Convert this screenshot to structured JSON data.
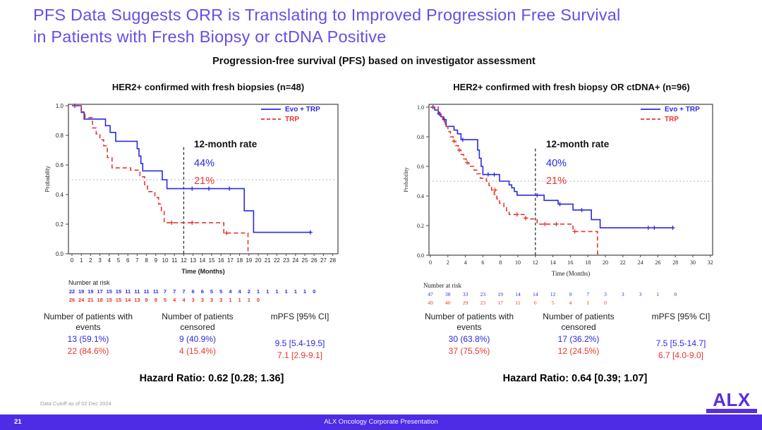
{
  "slide": {
    "title_line1": "PFS Data Suggests ORR is Translating to Improved Progression Free Survival",
    "title_line2": "in Patients with Fresh Biopsy or ctDNA Positive",
    "subtitle": "Progression-free survival (PFS) based on investigator assessment",
    "footer": {
      "data_cutoff": "Data Cutoff as of 02 Dec 2024",
      "page_number": "21",
      "bar_text": "ALX Oncology Corporate Presentation",
      "logo_text": "ALX"
    },
    "colors": {
      "title_purple": "#6b4ce6",
      "footer_bar_purple": "#4e2be4",
      "logo_purple": "#5a2de0",
      "evo_blue": "#2a2ae0",
      "trp_red": "#e8362e"
    }
  },
  "chart_data": [
    {
      "type": "line",
      "subtype": "kaplan_meier_step",
      "title": "HER2+ confirmed with fresh biopsies (n=48)",
      "xlabel": "Time (Months)",
      "ylabel": "Probability",
      "xlim": [
        0,
        28
      ],
      "ylim": [
        0.0,
        1.0
      ],
      "xticks": [
        0,
        1,
        2,
        3,
        4,
        5,
        6,
        7,
        8,
        9,
        10,
        11,
        12,
        13,
        14,
        15,
        16,
        17,
        18,
        19,
        20,
        21,
        22,
        23,
        24,
        25,
        26,
        27,
        28
      ],
      "yticks": [
        "1.0",
        "0.8",
        "0.6",
        "0.4",
        "0.2",
        "0.0"
      ],
      "reference_lines": {
        "vertical_dashed_x": 12,
        "horizontal_dotted_y": 0.5
      },
      "legend": [
        {
          "label": "Evo + TRP",
          "style": "solid"
        },
        {
          "label": "TRP",
          "style": "dashed"
        }
      ],
      "annotation": {
        "title": "12-month rate",
        "values": [
          "44%",
          "21%"
        ]
      },
      "series": [
        {
          "name": "Evo + TRP",
          "color": "#2a2ae0",
          "style": "solid",
          "steps": [
            [
              0,
              1.0
            ],
            [
              1.0,
              0.955
            ],
            [
              1.3,
              0.91
            ],
            [
              3.6,
              0.865
            ],
            [
              4.1,
              0.82
            ],
            [
              4.7,
              0.76
            ],
            [
              7.0,
              0.71
            ],
            [
              7.2,
              0.66
            ],
            [
              7.4,
              0.61
            ],
            [
              7.6,
              0.56
            ],
            [
              9.7,
              0.5
            ],
            [
              10.2,
              0.44
            ],
            [
              18.5,
              0.29
            ],
            [
              19.5,
              0.145
            ]
          ],
          "end": 25.7,
          "censors": [
            [
              0.3,
              1.0
            ],
            [
              12.9,
              0.44
            ],
            [
              14.7,
              0.44
            ],
            [
              16.9,
              0.44
            ],
            [
              25.6,
              0.145
            ]
          ]
        },
        {
          "name": "TRP",
          "color": "#e8362e",
          "style": "dashed",
          "steps": [
            [
              0,
              1.0
            ],
            [
              1.0,
              0.96
            ],
            [
              1.4,
              0.92
            ],
            [
              2.2,
              0.85
            ],
            [
              2.6,
              0.81
            ],
            [
              3.0,
              0.77
            ],
            [
              3.4,
              0.73
            ],
            [
              3.8,
              0.65
            ],
            [
              4.3,
              0.58
            ],
            [
              6.3,
              0.565
            ],
            [
              7.3,
              0.52
            ],
            [
              7.8,
              0.46
            ],
            [
              8.1,
              0.42
            ],
            [
              8.9,
              0.38
            ],
            [
              9.3,
              0.335
            ],
            [
              9.6,
              0.29
            ],
            [
              9.9,
              0.21
            ],
            [
              16.3,
              0.14
            ],
            [
              18.9,
              0.01
            ]
          ],
          "end": 19.0,
          "censors": [
            [
              10.7,
              0.21
            ],
            [
              12.9,
              0.21
            ],
            [
              16.6,
              0.14
            ]
          ]
        }
      ],
      "number_at_risk": {
        "label": "Number at risk",
        "rows": [
          {
            "series": "Evo + TRP",
            "values": [
              22,
              19,
              19,
              17,
              15,
              15,
              11,
              11,
              11,
              11,
              7,
              7,
              7,
              6,
              6,
              5,
              5,
              4,
              4,
              2,
              1,
              1,
              1,
              1,
              1,
              1,
              0
            ]
          },
          {
            "series": "TRP",
            "values": [
              26,
              24,
              21,
              18,
              15,
              15,
              14,
              13,
              9,
              9,
              5,
              4,
              4,
              3,
              3,
              3,
              3,
              1,
              1,
              1,
              0
            ]
          }
        ]
      },
      "stats": {
        "headers": [
          "Number of patients with events",
          "Number of patients censored",
          "mPFS [95% CI]"
        ],
        "rows": [
          [
            "13 (59.1%)",
            "9 (40.9%)",
            "9.5 [5.4-19.5]"
          ],
          [
            "22 (84.6%)",
            "4 (15.4%)",
            "7.1 [2.9-9.1]"
          ]
        ],
        "hazard_ratio": "Hazard Ratio: 0.62 [0.28; 1.36]"
      }
    },
    {
      "type": "line",
      "subtype": "kaplan_meier_step",
      "title": "HER2+ confirmed with fresh biopsy OR ctDNA+ (n=96)",
      "xlabel": "Time (Months)",
      "ylabel": "Probability",
      "xlim": [
        0,
        32
      ],
      "ylim": [
        0.0,
        1.0
      ],
      "xticks": [
        0,
        2,
        4,
        6,
        8,
        10,
        12,
        14,
        16,
        18,
        20,
        22,
        24,
        26,
        28,
        30,
        32
      ],
      "yticks": [
        "1.0",
        "0.8",
        "0.6",
        "0.4",
        "0.2",
        "0.0"
      ],
      "reference_lines": {
        "vertical_dashed_x": 12,
        "horizontal_dotted_y": 0.5
      },
      "legend": [
        {
          "label": "Evo + TRP",
          "style": "solid"
        },
        {
          "label": "TRP",
          "style": "dashed"
        }
      ],
      "annotation": {
        "title": "12-month rate",
        "values": [
          "40%",
          "21%"
        ]
      },
      "series": [
        {
          "name": "Evo + TRP",
          "color": "#2a2ae0",
          "style": "solid",
          "steps": [
            [
              0,
              1.0
            ],
            [
              0.5,
              0.98
            ],
            [
              0.9,
              0.955
            ],
            [
              1.2,
              0.935
            ],
            [
              1.5,
              0.915
            ],
            [
              1.8,
              0.87
            ],
            [
              2.7,
              0.845
            ],
            [
              3.1,
              0.82
            ],
            [
              3.5,
              0.78
            ],
            [
              5.4,
              0.71
            ],
            [
              5.6,
              0.655
            ],
            [
              5.8,
              0.6
            ],
            [
              6.0,
              0.545
            ],
            [
              7.9,
              0.5
            ],
            [
              9.0,
              0.475
            ],
            [
              9.3,
              0.455
            ],
            [
              9.6,
              0.43
            ],
            [
              9.9,
              0.405
            ],
            [
              13.0,
              0.37
            ],
            [
              14.6,
              0.345
            ],
            [
              16.3,
              0.305
            ],
            [
              18.4,
              0.24
            ],
            [
              19.4,
              0.185
            ]
          ],
          "end": 27.8,
          "censors": [
            [
              0.3,
              1.0
            ],
            [
              1.0,
              0.955
            ],
            [
              1.6,
              0.915
            ],
            [
              3.7,
              0.78
            ],
            [
              6.6,
              0.545
            ],
            [
              7.3,
              0.545
            ],
            [
              12.2,
              0.405
            ],
            [
              14.8,
              0.345
            ],
            [
              17.3,
              0.305
            ],
            [
              24.9,
              0.185
            ],
            [
              25.6,
              0.185
            ],
            [
              27.7,
              0.185
            ]
          ]
        },
        {
          "name": "TRP",
          "color": "#e8362e",
          "style": "dashed",
          "steps": [
            [
              0,
              1.0
            ],
            [
              0.9,
              0.97
            ],
            [
              1.1,
              0.94
            ],
            [
              1.4,
              0.9
            ],
            [
              1.7,
              0.87
            ],
            [
              2.0,
              0.835
            ],
            [
              2.3,
              0.8
            ],
            [
              2.6,
              0.77
            ],
            [
              2.9,
              0.74
            ],
            [
              3.2,
              0.71
            ],
            [
              3.5,
              0.68
            ],
            [
              3.8,
              0.65
            ],
            [
              4.1,
              0.625
            ],
            [
              4.4,
              0.6
            ],
            [
              5.0,
              0.575
            ],
            [
              5.3,
              0.55
            ],
            [
              5.7,
              0.52
            ],
            [
              6.4,
              0.5
            ],
            [
              6.7,
              0.47
            ],
            [
              7.0,
              0.44
            ],
            [
              7.3,
              0.41
            ],
            [
              7.6,
              0.38
            ],
            [
              7.9,
              0.35
            ],
            [
              8.4,
              0.32
            ],
            [
              8.7,
              0.3
            ],
            [
              9.0,
              0.275
            ],
            [
              10.8,
              0.25
            ],
            [
              11.1,
              0.245
            ],
            [
              12.2,
              0.21
            ],
            [
              16.3,
              0.16
            ],
            [
              19.1,
              0.01
            ]
          ],
          "end": 19.2,
          "censors": [
            [
              2.7,
              0.77
            ],
            [
              3.3,
              0.71
            ],
            [
              4.2,
              0.625
            ],
            [
              7.4,
              0.44
            ],
            [
              9.9,
              0.275
            ],
            [
              10.9,
              0.25
            ],
            [
              13.1,
              0.21
            ],
            [
              14.4,
              0.21
            ],
            [
              16.5,
              0.16
            ]
          ]
        }
      ],
      "number_at_risk": {
        "label": "Number at risk",
        "rows": [
          {
            "series": "Evo + TRP",
            "values": [
              47,
              38,
              33,
              23,
              19,
              14,
              14,
              12,
              9,
              7,
              3,
              3,
              3,
              1,
              0
            ]
          },
          {
            "series": "TRP",
            "values": [
              49,
              40,
              29,
              23,
              17,
              11,
              6,
              5,
              4,
              1,
              0
            ]
          }
        ]
      },
      "stats": {
        "headers": [
          "Number of patients with events",
          "Number of patients censored",
          "mPFS [95% CI]"
        ],
        "rows": [
          [
            "30 (63.8%)",
            "17 (36.2%)",
            "7.5 [5.5-14.7]"
          ],
          [
            "37 (75.5%)",
            "12 (24.5%)",
            "6.7 [4.0-9.0]"
          ]
        ],
        "hazard_ratio": "Hazard Ratio: 0.64 [0.39; 1.07]"
      }
    }
  ]
}
